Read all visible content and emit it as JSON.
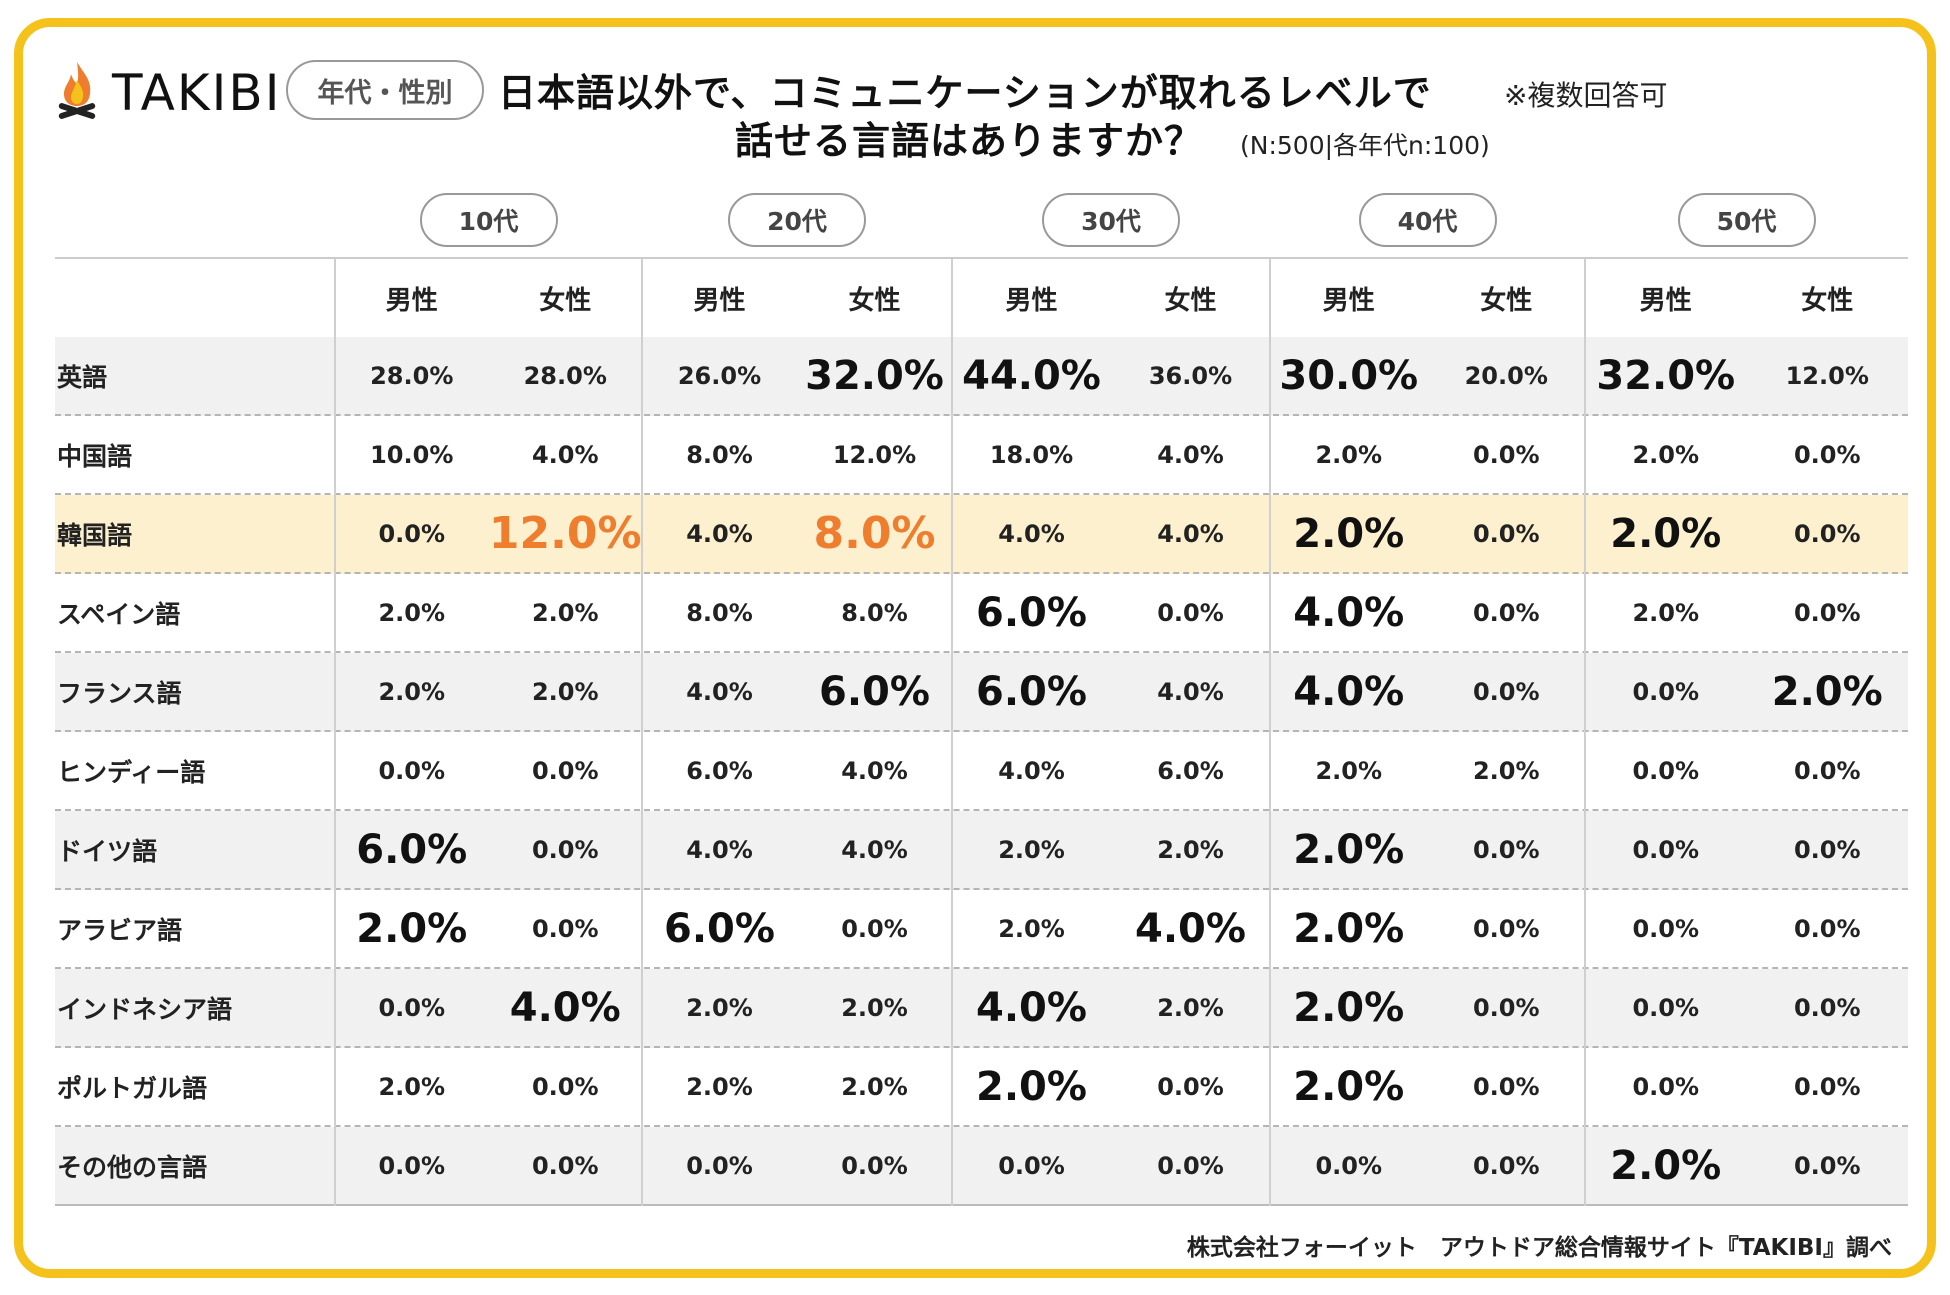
{
  "colors": {
    "frame": "#f5c21b",
    "accent_orange": "#ef7d2e",
    "highlight_row": "#fdf0cf",
    "shade_row": "#f1f1f1"
  },
  "header": {
    "logo_text": "TAKIBI",
    "logo_icon": "campfire-icon",
    "tag": "年代・性別",
    "title_line1": "日本語以外で、コミュニケーションが取れるレベルで",
    "title_line2": "話せる言語はありますか？",
    "note": "※複数回答可",
    "sample": "(N:500|各年代n:100)"
  },
  "footer": "株式会社フォーイット　アウトドア総合情報サイト『TAKIBI』調べ",
  "chart_data": {
    "type": "table",
    "age_groups": [
      "10代",
      "20代",
      "30代",
      "40代",
      "50代"
    ],
    "genders": [
      "男性",
      "女性"
    ],
    "columns": [
      "10代 男性",
      "10代 女性",
      "20代 男性",
      "20代 女性",
      "30代 男性",
      "30代 女性",
      "40代 男性",
      "40代 女性",
      "50代 男性",
      "50代 女性"
    ],
    "rows": [
      {
        "label": "英語",
        "values": [
          "28.0%",
          "28.0%",
          "26.0%",
          "32.0%",
          "44.0%",
          "36.0%",
          "30.0%",
          "20.0%",
          "32.0%",
          "12.0%"
        ],
        "emphasis": [
          "",
          "",
          "",
          "big",
          "big",
          "",
          "big",
          "",
          "big",
          ""
        ]
      },
      {
        "label": "中国語",
        "values": [
          "10.0%",
          "4.0%",
          "8.0%",
          "12.0%",
          "18.0%",
          "4.0%",
          "2.0%",
          "0.0%",
          "2.0%",
          "0.0%"
        ],
        "emphasis": [
          "",
          "",
          "",
          "",
          "",
          "",
          "",
          "",
          "",
          ""
        ]
      },
      {
        "label": "韓国語",
        "values": [
          "0.0%",
          "12.0%",
          "4.0%",
          "8.0%",
          "4.0%",
          "4.0%",
          "2.0%",
          "0.0%",
          "2.0%",
          "0.0%"
        ],
        "emphasis": [
          "",
          "orange",
          "",
          "orange",
          "",
          "",
          "big",
          "",
          "big",
          ""
        ],
        "highlighted": true
      },
      {
        "label": "スペイン語",
        "values": [
          "2.0%",
          "2.0%",
          "8.0%",
          "8.0%",
          "6.0%",
          "0.0%",
          "4.0%",
          "0.0%",
          "2.0%",
          "0.0%"
        ],
        "emphasis": [
          "",
          "",
          "",
          "",
          "big",
          "",
          "big",
          "",
          "",
          ""
        ]
      },
      {
        "label": "フランス語",
        "values": [
          "2.0%",
          "2.0%",
          "4.0%",
          "6.0%",
          "6.0%",
          "4.0%",
          "4.0%",
          "0.0%",
          "0.0%",
          "2.0%"
        ],
        "emphasis": [
          "",
          "",
          "",
          "big",
          "big",
          "",
          "big",
          "",
          "",
          "big"
        ]
      },
      {
        "label": "ヒンディー語",
        "values": [
          "0.0%",
          "0.0%",
          "6.0%",
          "4.0%",
          "4.0%",
          "6.0%",
          "2.0%",
          "2.0%",
          "0.0%",
          "0.0%"
        ],
        "emphasis": [
          "",
          "",
          "",
          "",
          "",
          "",
          "",
          "",
          "",
          ""
        ]
      },
      {
        "label": "ドイツ語",
        "values": [
          "6.0%",
          "0.0%",
          "4.0%",
          "4.0%",
          "2.0%",
          "2.0%",
          "2.0%",
          "0.0%",
          "0.0%",
          "0.0%"
        ],
        "emphasis": [
          "big",
          "",
          "",
          "",
          "",
          "",
          "big",
          "",
          "",
          ""
        ]
      },
      {
        "label": "アラビア語",
        "values": [
          "2.0%",
          "0.0%",
          "6.0%",
          "0.0%",
          "2.0%",
          "4.0%",
          "2.0%",
          "0.0%",
          "0.0%",
          "0.0%"
        ],
        "emphasis": [
          "big",
          "",
          "big",
          "",
          "",
          "big",
          "big",
          "",
          "",
          ""
        ]
      },
      {
        "label": "インドネシア語",
        "values": [
          "0.0%",
          "4.0%",
          "2.0%",
          "2.0%",
          "4.0%",
          "2.0%",
          "2.0%",
          "0.0%",
          "0.0%",
          "0.0%"
        ],
        "emphasis": [
          "",
          "big",
          "",
          "",
          "big",
          "",
          "big",
          "",
          "",
          ""
        ]
      },
      {
        "label": "ポルトガル語",
        "values": [
          "2.0%",
          "0.0%",
          "2.0%",
          "2.0%",
          "2.0%",
          "0.0%",
          "2.0%",
          "0.0%",
          "0.0%",
          "0.0%"
        ],
        "emphasis": [
          "",
          "",
          "",
          "",
          "big",
          "",
          "big",
          "",
          "",
          ""
        ]
      },
      {
        "label": "その他の言語",
        "values": [
          "0.0%",
          "0.0%",
          "0.0%",
          "0.0%",
          "0.0%",
          "0.0%",
          "0.0%",
          "0.0%",
          "2.0%",
          "0.0%"
        ],
        "emphasis": [
          "",
          "",
          "",
          "",
          "",
          "",
          "",
          "",
          "big",
          ""
        ]
      }
    ]
  }
}
